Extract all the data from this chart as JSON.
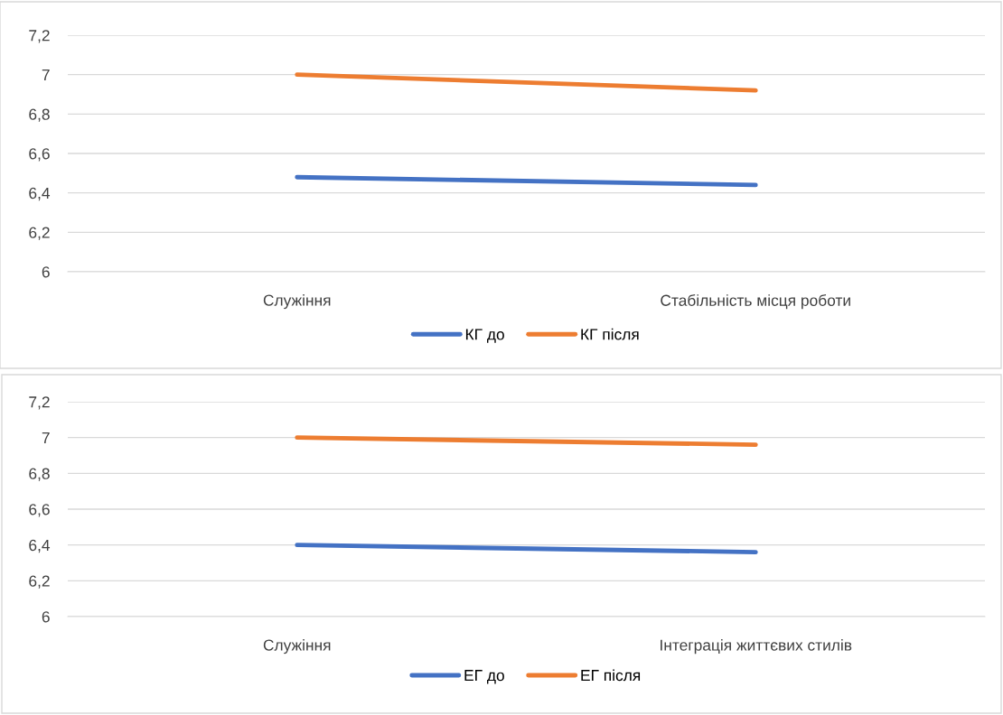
{
  "chart_data": [
    {
      "type": "line",
      "categories": [
        "Служіння",
        "Стабільність місця роботи"
      ],
      "series": [
        {
          "name": "КГ до",
          "color": "#4472c4",
          "values": [
            6.48,
            6.44
          ]
        },
        {
          "name": "КГ після",
          "color": "#ed7d31",
          "values": [
            7.0,
            6.92
          ]
        }
      ],
      "ylim": [
        6,
        7.2
      ],
      "yticks": [
        {
          "value": 6,
          "label": "6"
        },
        {
          "value": 6.2,
          "label": "6,2"
        },
        {
          "value": 6.4,
          "label": "6,4"
        },
        {
          "value": 6.6,
          "label": "6,6"
        },
        {
          "value": 6.8,
          "label": "6,8"
        },
        {
          "value": 7,
          "label": "7"
        },
        {
          "value": 7.2,
          "label": "7,2"
        }
      ],
      "grid": "y",
      "legend": "bottom",
      "marker": "none",
      "line_style": "solid"
    },
    {
      "type": "line",
      "categories": [
        "Служіння",
        "Інтеграція життєвих стилів"
      ],
      "series": [
        {
          "name": "ЕГ до",
          "color": "#4472c4",
          "values": [
            6.4,
            6.36
          ]
        },
        {
          "name": "ЕГ після",
          "color": "#ed7d31",
          "values": [
            7.0,
            6.96
          ]
        }
      ],
      "ylim": [
        6,
        7.2
      ],
      "yticks": [
        {
          "value": 6,
          "label": "6"
        },
        {
          "value": 6.2,
          "label": "6,2"
        },
        {
          "value": 6.4,
          "label": "6,4"
        },
        {
          "value": 6.6,
          "label": "6,6"
        },
        {
          "value": 6.8,
          "label": "6,8"
        },
        {
          "value": 7,
          "label": "7"
        },
        {
          "value": 7.2,
          "label": "7,2"
        }
      ],
      "grid": "y",
      "legend": "bottom",
      "marker": "none",
      "line_style": "solid"
    }
  ]
}
